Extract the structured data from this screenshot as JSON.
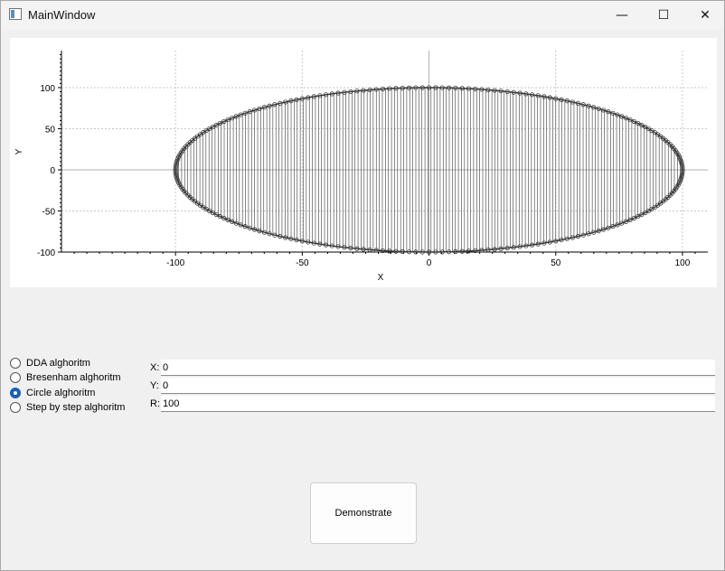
{
  "window": {
    "title": "MainWindow"
  },
  "titlebar_buttons": {
    "minimize": "—",
    "maximize": "☐",
    "close": "✕"
  },
  "plot": {
    "xlabel": "X",
    "ylabel": "Y",
    "x_ticks": [
      "-100",
      "-50",
      "0",
      "50",
      "100"
    ],
    "y_ticks": [
      "100",
      "50",
      "0",
      "-50",
      "-100"
    ],
    "x_tick_values": [
      -100,
      -50,
      0,
      50,
      100
    ],
    "y_tick_values": [
      100,
      50,
      0,
      -50,
      -100
    ]
  },
  "chart_data": {
    "type": "line",
    "title": "",
    "xlabel": "X",
    "ylabel": "Y",
    "xlim": [
      -145,
      110
    ],
    "ylim": [
      -100,
      145
    ],
    "grid": true,
    "series": [
      {
        "shape": "circle",
        "center": [
          0,
          0
        ],
        "radius": 100,
        "marker": "circle-outline",
        "color": "#3a3a3a"
      }
    ]
  },
  "algorithms": {
    "options": [
      {
        "label": "DDA alghoritm",
        "checked": false
      },
      {
        "label": "Bresenham alghoritm",
        "checked": false
      },
      {
        "label": "Circle alghoritm",
        "checked": true
      },
      {
        "label": "Step by step alghoritm",
        "checked": false
      }
    ]
  },
  "params": {
    "x": {
      "label": "X:",
      "value": "0"
    },
    "y": {
      "label": "Y:",
      "value": "0"
    },
    "r": {
      "label": "R:",
      "value": "100"
    }
  },
  "demonstrate": {
    "label": "Demonstrate"
  },
  "colors": {
    "accent": "#1a5fb4",
    "plot_line": "#3a3a3a",
    "grid": "#c8c8c8"
  }
}
